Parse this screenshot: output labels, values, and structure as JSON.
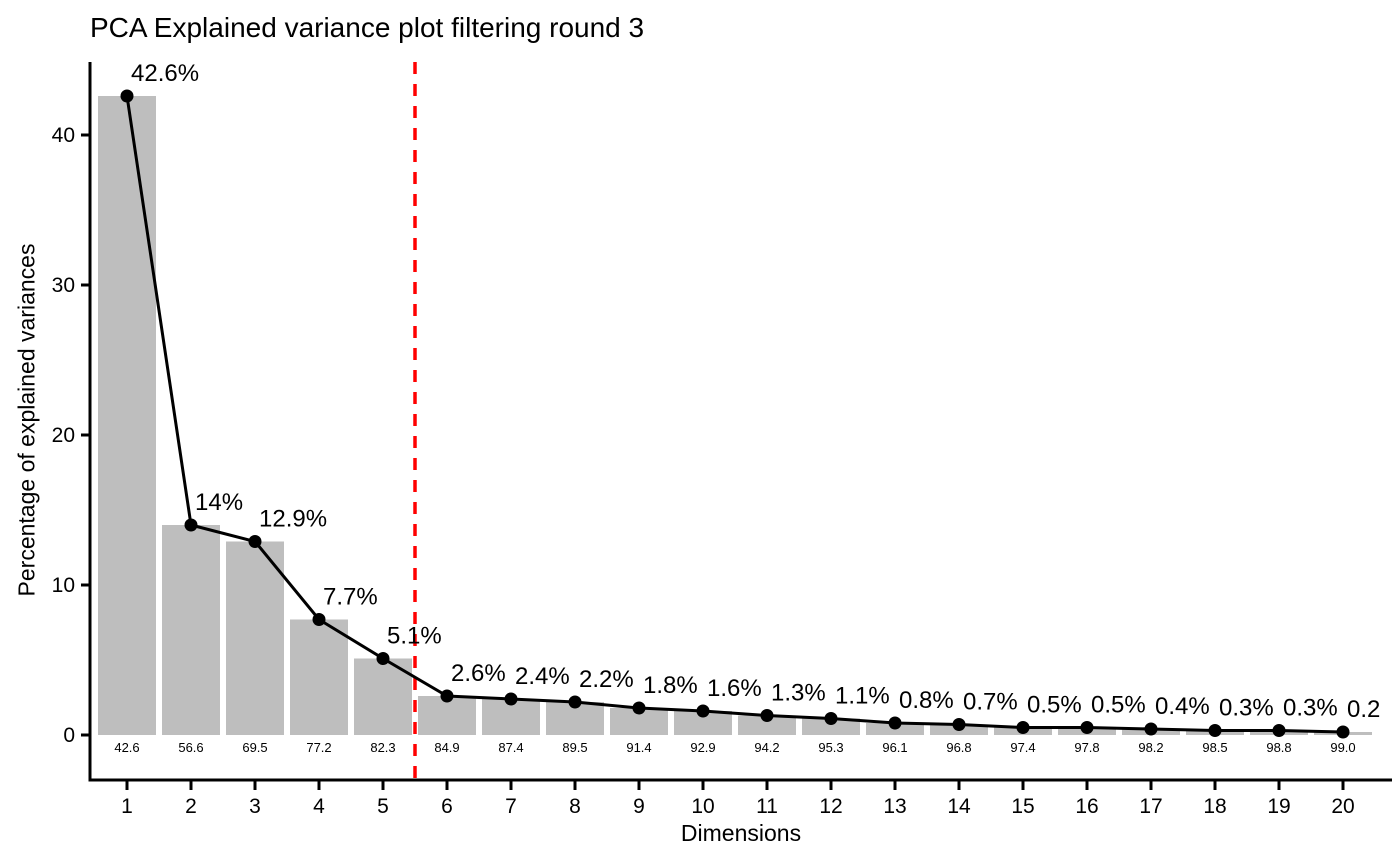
{
  "chart_data": {
    "type": "bar",
    "title": "PCA Explained variance plot filtering round 3",
    "xlabel": "Dimensions",
    "ylabel": "Percentage of explained variances",
    "categories": [
      "1",
      "2",
      "3",
      "4",
      "5",
      "6",
      "7",
      "8",
      "9",
      "10",
      "11",
      "12",
      "13",
      "14",
      "15",
      "16",
      "17",
      "18",
      "19",
      "20"
    ],
    "series": [
      {
        "name": "explained-variance-percent",
        "type": "bar+line",
        "values": [
          42.6,
          14,
          12.9,
          7.7,
          5.1,
          2.6,
          2.4,
          2.2,
          1.8,
          1.6,
          1.3,
          1.1,
          0.8,
          0.7,
          0.5,
          0.5,
          0.4,
          0.3,
          0.3,
          0.2
        ]
      },
      {
        "name": "cumulative-variance-percent",
        "type": "text-labels-below-bars",
        "values": [
          42.6,
          56.6,
          69.5,
          77.2,
          82.3,
          84.9,
          87.4,
          89.5,
          91.4,
          92.9,
          94.2,
          95.3,
          96.1,
          96.8,
          97.4,
          97.8,
          98.2,
          98.5,
          98.8,
          99.0
        ]
      }
    ],
    "point_labels": [
      "42.6%",
      "14%",
      "12.9%",
      "7.7%",
      "5.1%",
      "2.6%",
      "2.4%",
      "2.2%",
      "1.8%",
      "1.6%",
      "1.3%",
      "1.1%",
      "0.8%",
      "0.7%",
      "0.5%",
      "0.5%",
      "0.4%",
      "0.3%",
      "0.3%",
      "0.2"
    ],
    "cumulative_labels": [
      "42.6",
      "56.6",
      "69.5",
      "77.2",
      "82.3",
      "84.9",
      "87.4",
      "89.5",
      "91.4",
      "92.9",
      "94.2",
      "95.3",
      "96.1",
      "96.8",
      "97.4",
      "97.8",
      "98.2",
      "98.5",
      "98.8",
      "99.0"
    ],
    "y_ticks": [
      0,
      10,
      20,
      30,
      40
    ],
    "ylim": [
      -3,
      45
    ],
    "reference_line_x": 5.5,
    "grid": false,
    "legend": "none",
    "colors": {
      "bar": "#bebebe",
      "line": "#000000",
      "point": "#000000",
      "reference_line": "#ff0000",
      "axis": "#000000",
      "text": "#000000",
      "background": "#ffffff"
    }
  }
}
